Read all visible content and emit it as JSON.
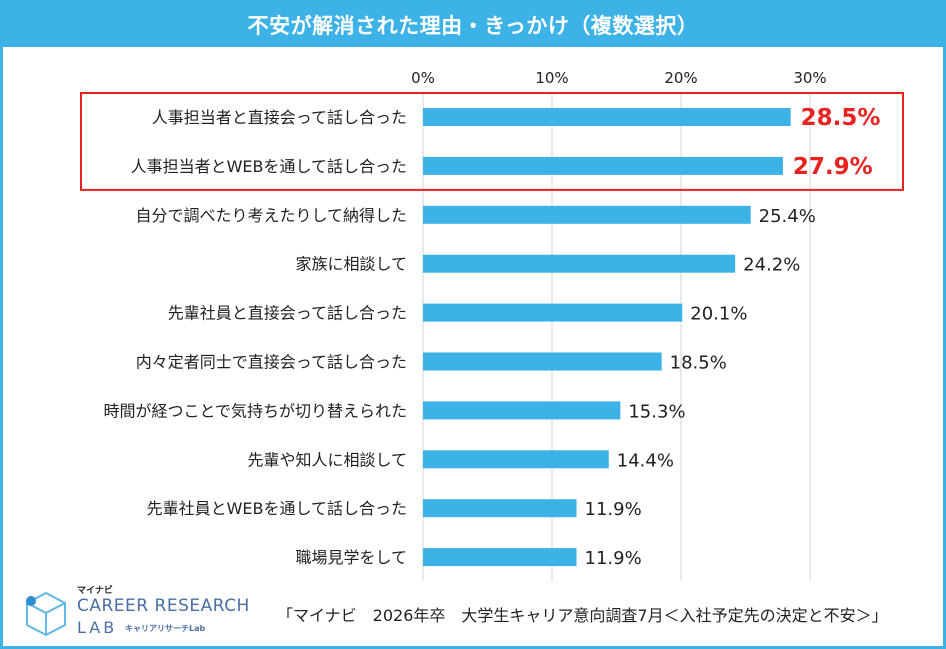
{
  "header": {
    "title": "不安が解消された理由・きっかけ（複数選択）"
  },
  "chart_data": {
    "type": "bar",
    "orientation": "horizontal",
    "title": "不安が解消された理由・きっかけ（複数選択）",
    "categories": [
      "人事担当者と直接会って話し合った",
      "人事担当者とWEBを通して話し合った",
      "自分で調べたり考えたりして納得した",
      "家族に相談して",
      "先輩社員と直接会って話し合った",
      "内々定者同士で直接会って話し合った",
      "時間が経つことで気持ちが切り替えられた",
      "先輩や知人に相談して",
      "先輩社員とWEBを通して話し合った",
      "職場見学をして"
    ],
    "values": [
      28.5,
      27.9,
      25.4,
      24.2,
      20.1,
      18.5,
      15.3,
      14.4,
      11.9,
      11.9
    ],
    "value_labels": [
      "28.5%",
      "27.9%",
      "25.4%",
      "24.2%",
      "20.1%",
      "18.5%",
      "15.3%",
      "14.4%",
      "11.9%",
      "11.9%"
    ],
    "highlighted": [
      0,
      1
    ],
    "xlim": [
      0,
      40
    ],
    "xticks": [
      0,
      10,
      20,
      30
    ],
    "xtick_labels": [
      "0%",
      "10%",
      "20%",
      "30%"
    ],
    "xlabel": "",
    "ylabel": "",
    "grid": true,
    "legend": "none"
  },
  "colors": {
    "bar": "#3db2e6",
    "frame": "#3db2e6",
    "highlight": "#e8231f",
    "grid": "#d4d4d4"
  },
  "footer": {
    "source": "「マイナビ　2026年卒　大学生キャリア意向調査7月＜入社予定先の決定と不安＞」"
  },
  "logo": {
    "top": "マイナビ",
    "name": "CAREER RESEARCH",
    "lab": "LAB",
    "sub": "キャリアリサーチLab",
    "icon": "cube-logo-icon"
  }
}
